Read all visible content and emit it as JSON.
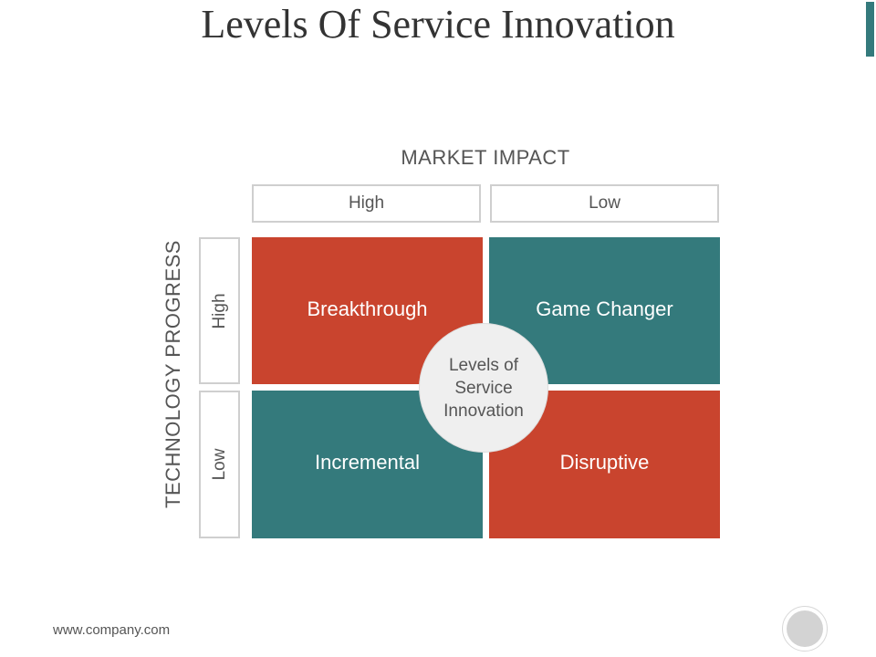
{
  "title": "Levels Of Service Innovation",
  "axes": {
    "x_title": "MARKET IMPACT",
    "y_title": "TECHNOLOGY PROGRESS"
  },
  "columns": [
    {
      "label": "High"
    },
    {
      "label": "Low"
    }
  ],
  "rows": [
    {
      "label": "High"
    },
    {
      "label": "Low"
    }
  ],
  "quadrants": {
    "top_left": {
      "label": "Breakthrough",
      "color": "#c9442e"
    },
    "top_right": {
      "label": "Game Changer",
      "color": "#347a7c"
    },
    "bottom_left": {
      "label": "Incremental",
      "color": "#347a7c"
    },
    "bottom_right": {
      "label": "Disruptive",
      "color": "#c9442e"
    }
  },
  "center": {
    "lines": [
      "Levels of",
      "Service",
      "Innovation"
    ]
  },
  "footer": {
    "url": "www.company.com"
  },
  "colors": {
    "accent": "#347a7c",
    "red": "#c9442e"
  }
}
